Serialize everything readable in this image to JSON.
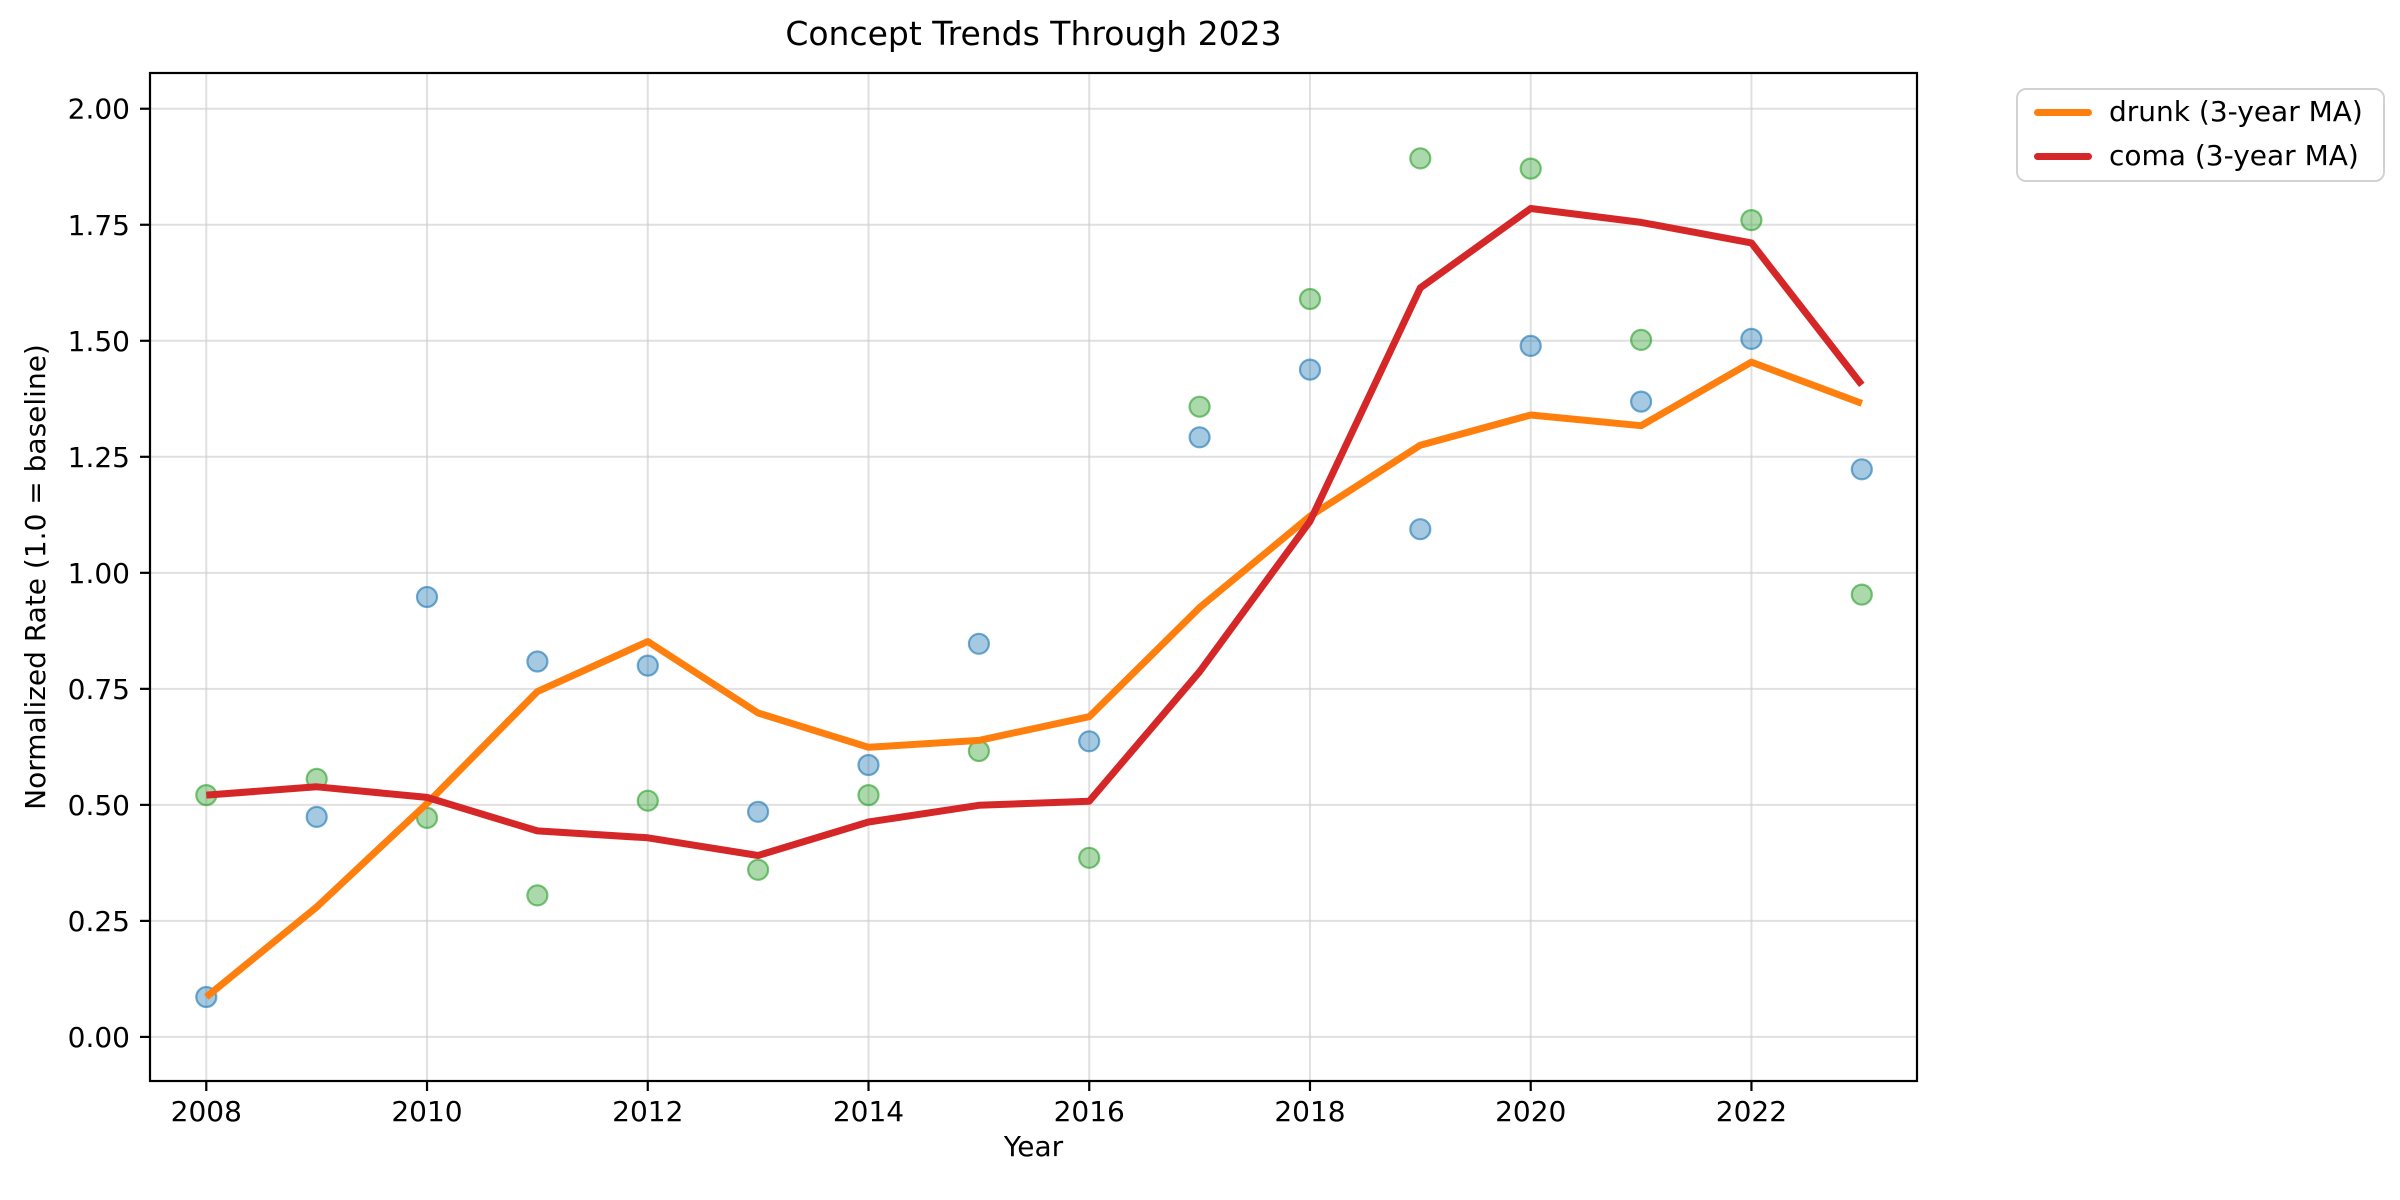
{
  "chart_data": {
    "type": "line",
    "title": "Concept Trends Through 2023",
    "xlabel": "Year",
    "ylabel": "Normalized Rate (1.0 = baseline)",
    "x": [
      2008,
      2009,
      2010,
      2011,
      2012,
      2013,
      2014,
      2015,
      2016,
      2017,
      2018,
      2019,
      2020,
      2021,
      2022,
      2023
    ],
    "series": [
      {
        "id": "drunk-yearly-scatter",
        "kind": "scatter",
        "color": "#1f77b4",
        "values": [
          0.086,
          0.474,
          0.948,
          0.809,
          0.8,
          0.485,
          0.586,
          0.847,
          0.637,
          1.292,
          1.438,
          1.094,
          1.489,
          1.369,
          1.504,
          1.223
        ]
      },
      {
        "id": "coma-yearly-scatter",
        "kind": "scatter",
        "color": "#2ca02c",
        "values": [
          0.521,
          0.556,
          0.472,
          0.305,
          0.509,
          0.36,
          0.521,
          0.616,
          0.386,
          1.358,
          1.59,
          1.893,
          1.871,
          1.502,
          1.76,
          0.953
        ]
      },
      {
        "id": "drunk-ma-line",
        "kind": "line",
        "legend_label": "drunk (3-year MA)",
        "color": "#ff7f0e",
        "values": [
          0.086,
          0.28,
          0.503,
          0.744,
          0.852,
          0.698,
          0.624,
          0.639,
          0.69,
          0.925,
          1.122,
          1.275,
          1.34,
          1.317,
          1.454,
          1.365
        ]
      },
      {
        "id": "coma-ma-line",
        "kind": "line",
        "legend_label": "coma (3-year MA)",
        "color": "#d62728",
        "values": [
          0.521,
          0.539,
          0.516,
          0.444,
          0.429,
          0.391,
          0.463,
          0.499,
          0.508,
          0.787,
          1.111,
          1.614,
          1.785,
          1.755,
          1.711,
          1.405
        ]
      }
    ],
    "xticks": [
      2008,
      2010,
      2012,
      2014,
      2016,
      2018,
      2020,
      2022
    ],
    "yticks": [
      0.0,
      0.25,
      0.5,
      0.75,
      1.0,
      1.25,
      1.5,
      1.75,
      2.0
    ],
    "ytick_format_decimals": 2,
    "xlim": [
      2007.49,
      2023.5
    ],
    "ylim": [
      -0.095,
      2.077
    ],
    "grid": true,
    "legend_position": "outside-upper-right"
  }
}
